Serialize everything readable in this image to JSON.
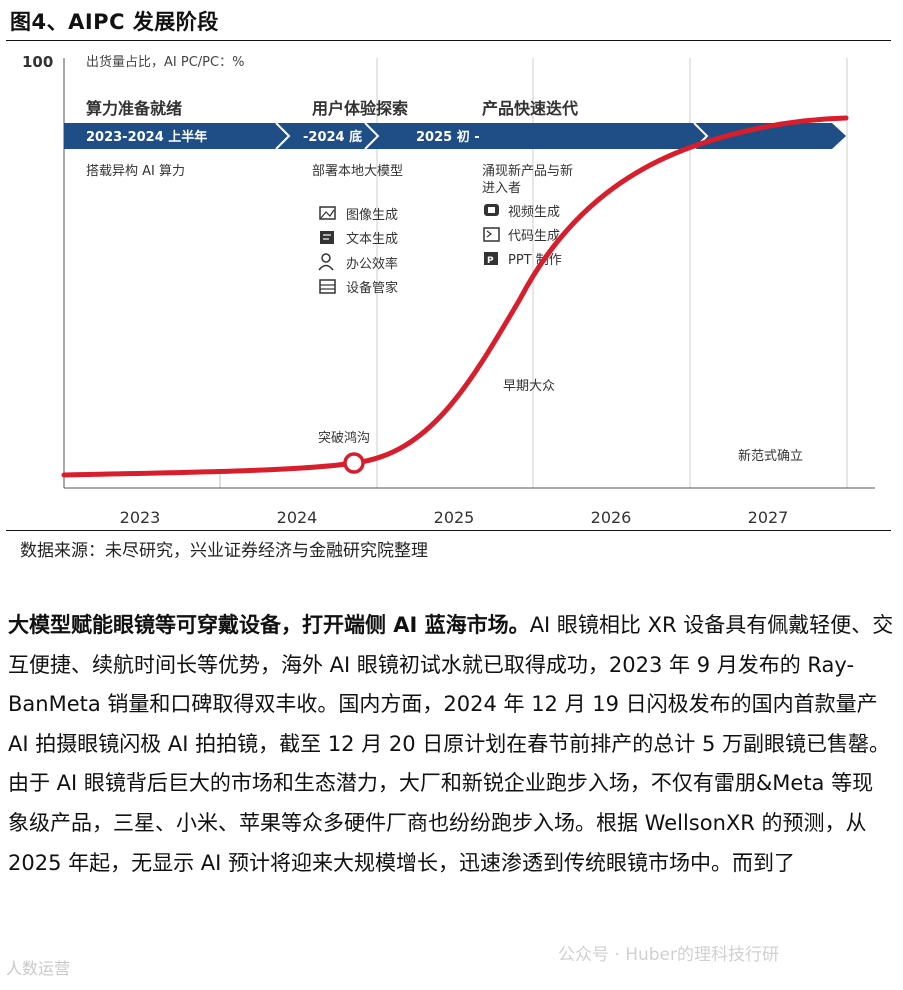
{
  "figure_title": "图4、AIPC 发展阶段",
  "chart_data": {
    "type": "line",
    "y_axis_tick": "100",
    "y_axis_label": "出货量占比，AI PC/PC：%",
    "x_axis_ticks": [
      "2023",
      "2024",
      "2025",
      "2026",
      "2027"
    ],
    "curve_color": "#d81e2c",
    "band_color": "#1f4e86",
    "stages": [
      {
        "title": "算力准备就绪",
        "period": "2023-2024 上半年",
        "desc": "搭载异构 AI 算力"
      },
      {
        "title": "用户体验探索",
        "period": "-2024 底",
        "desc": "部署本地大模型"
      },
      {
        "title": "产品快速迭代",
        "period": "2025 初 -",
        "desc": "涌现新产品与新进入者"
      }
    ],
    "local_model_features": [
      "图像生成",
      "文本生成",
      "办公效率",
      "设备管家"
    ],
    "new_product_features": [
      "视频生成",
      "代码生成",
      "PPT 制作"
    ],
    "annotations": {
      "breakthrough": "突破鸿沟",
      "early_majority": "早期大众",
      "new_paradigm": "新范式确立"
    }
  },
  "source_note": "数据来源：未尽研究，兴业证券经济与金融研究院整理",
  "paragraph": {
    "lead": "大模型赋能眼镜等可穿戴设备，打开端侧 AI 蓝海市场。",
    "body": "AI 眼镜相比 XR 设备具有佩戴轻便、交互便捷、续航时间长等优势，海外 AI 眼镜初试水就已取得成功，2023 年 9 月发布的 Ray-BanMeta 销量和口碑取得双丰收。国内方面，2024 年 12 月 19 日闪极发布的国内首款量产 AI 拍摄眼镜闪极 AI 拍拍镜，截至 12 月 20 日原计划在春节前排产的总计 5 万副眼镜已售罄。由于 AI 眼镜背后巨大的市场和生态潜力，大厂和新锐企业跑步入场，不仅有雷朋&Meta 等现象级产品，三星、小米、苹果等众多硬件厂商也纷纷跑步入场。根据 WellsonXR 的预测，从 2025 年起，无显示 AI 预计将迎来大规模增长，迅速渗透到传统眼镜市场中。而到了"
  },
  "watermarks": [
    "公众号 · Huber的理科技行研",
    "人数运营"
  ]
}
